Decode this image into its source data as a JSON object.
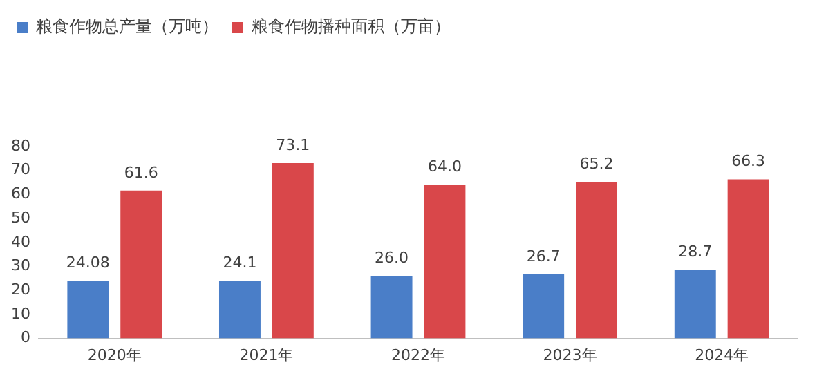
{
  "chart_data": {
    "type": "bar",
    "categories": [
      "2020年",
      "2021年",
      "2022年",
      "2023年",
      "2024年"
    ],
    "series": [
      {
        "name": "粮食作物总产量（万吨）",
        "color": "#4a7ec8",
        "values": [
          24.08,
          24.1,
          26.0,
          26.7,
          28.7
        ],
        "value_labels": [
          "24.08",
          "24.1",
          "26.0",
          "26.7",
          "28.7"
        ]
      },
      {
        "name": "粮食作物播种面积（万亩）",
        "color": "#d9474a",
        "values": [
          61.6,
          73.1,
          64.0,
          65.2,
          66.3
        ],
        "value_labels": [
          "61.6",
          "73.1",
          "64.0",
          "65.2",
          "66.3"
        ]
      }
    ],
    "ylim": [
      0,
      80
    ],
    "yticks": [
      0,
      10,
      20,
      30,
      40,
      50,
      60,
      70,
      80
    ],
    "grid": false,
    "legend": "top left"
  }
}
